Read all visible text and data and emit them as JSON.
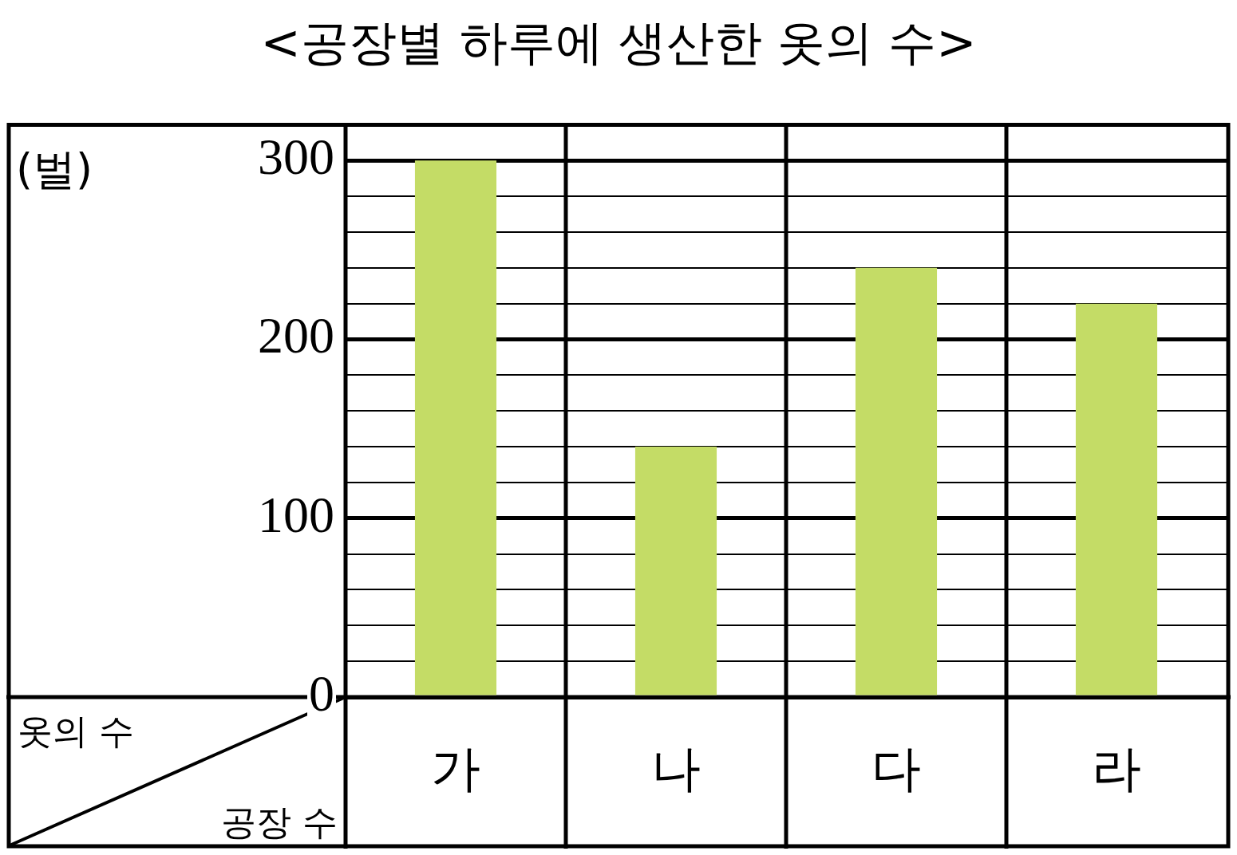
{
  "chart_data": {
    "type": "bar",
    "title": "<공장별 하루에 생산한 옷의 수>",
    "categories": [
      "가",
      "나",
      "다",
      "라"
    ],
    "values": [
      300,
      140,
      240,
      220
    ],
    "color": "#c4dc66",
    "ylim": [
      0,
      320
    ],
    "yticks": [
      0,
      {
        "value": 20,
        "label": null
      },
      {
        "value": 40,
        "label": null
      },
      {
        "value": 60,
        "label": null
      },
      {
        "value": 80,
        "label": null
      },
      100,
      {
        "value": 120,
        "label": null
      },
      {
        "value": 140,
        "label": null
      },
      {
        "value": 160,
        "label": null
      },
      {
        "value": 180,
        "label": null
      },
      200,
      {
        "value": 220,
        "label": null
      },
      {
        "value": 240,
        "label": null
      },
      {
        "value": 260,
        "label": null
      },
      {
        "value": 280,
        "label": null
      },
      300
    ],
    "grid": "y",
    "ylabel": "옷의 수",
    "xlabel": "공장 수",
    "annotations": [
      "(벌)"
    ]
  }
}
